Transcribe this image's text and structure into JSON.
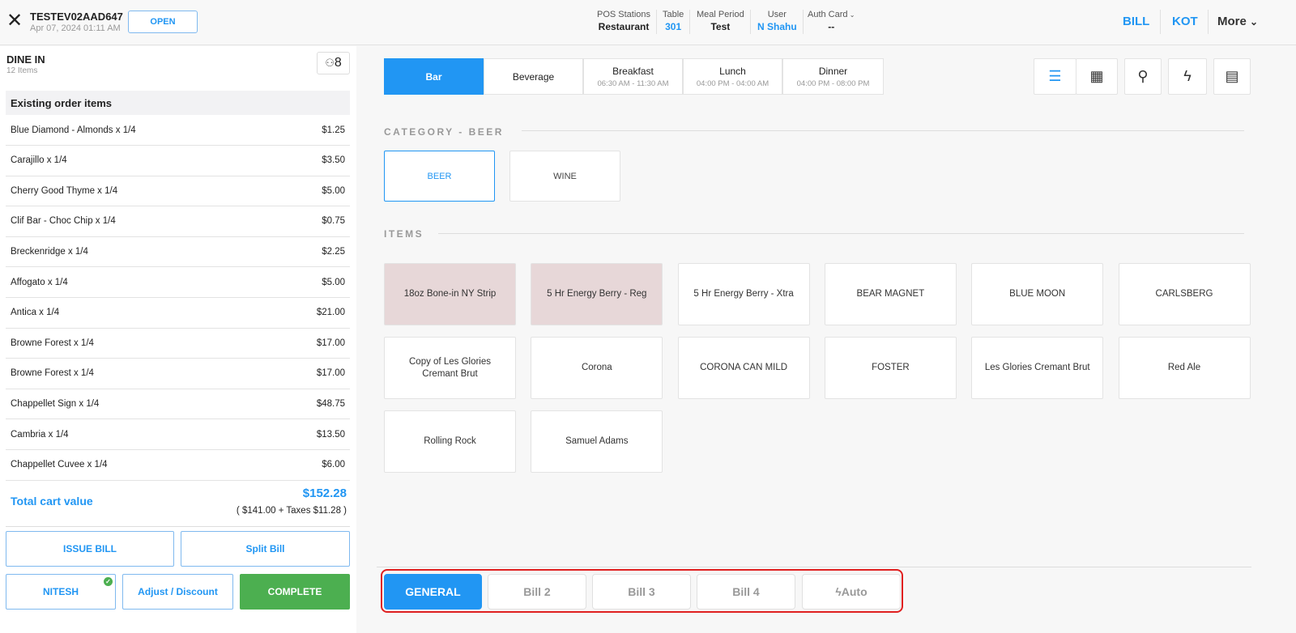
{
  "header": {
    "order_id": "TESTEV02AAD647",
    "date": "Apr 07, 2024 01:11 AM",
    "status": "OPEN",
    "meta": [
      {
        "label": "POS Stations",
        "value": "Restaurant"
      },
      {
        "label": "Table",
        "value": "301"
      },
      {
        "label": "Meal Period",
        "value": "Test"
      },
      {
        "label": "User",
        "value": "N Shahu"
      },
      {
        "label": "Auth Card",
        "value": "--"
      }
    ],
    "bill": "BILL",
    "kot": "KOT",
    "more": "More"
  },
  "order": {
    "type": "DINE IN",
    "count": "12 Items",
    "guests": "8",
    "section": "Existing order items",
    "items": [
      {
        "name": "Blue Diamond - Almonds x 1/4",
        "price": "$1.25"
      },
      {
        "name": "Carajillo x 1/4",
        "price": "$3.50"
      },
      {
        "name": "Cherry Good Thyme x 1/4",
        "price": "$5.00"
      },
      {
        "name": "Clif Bar - Choc Chip x 1/4",
        "price": "$0.75"
      },
      {
        "name": "Breckenridge x 1/4",
        "price": "$2.25"
      },
      {
        "name": "Affogato x 1/4",
        "price": "$5.00"
      },
      {
        "name": "Antica x 1/4",
        "price": "$21.00"
      },
      {
        "name": "Browne Forest x 1/4",
        "price": "$17.00"
      },
      {
        "name": "Browne Forest x 1/4",
        "price": "$17.00"
      },
      {
        "name": "Chappellet Sign x 1/4",
        "price": "$48.75"
      },
      {
        "name": "Cambria x 1/4",
        "price": "$13.50"
      },
      {
        "name": "Chappellet Cuvee x 1/4",
        "price": "$6.00"
      }
    ],
    "total_label": "Total cart value",
    "total": "$152.28",
    "breakdown": "( $141.00 + Taxes $11.28 )",
    "buttons": {
      "issue": "ISSUE BILL",
      "split": "Split Bill",
      "nitesh": "NITESH",
      "adjust": "Adjust / Discount",
      "complete": "COMPLETE"
    }
  },
  "menus": [
    {
      "name": "Bar",
      "time": ""
    },
    {
      "name": "Beverage",
      "time": ""
    },
    {
      "name": "Breakfast",
      "time": "06:30 AM -  11:30 AM"
    },
    {
      "name": "Lunch",
      "time": "04:00 PM -  04:00 AM"
    },
    {
      "name": "Dinner",
      "time": "04:00 PM -  08:00 PM"
    }
  ],
  "category_label": "CATEGORY  - BEER",
  "categories": [
    "BEER",
    "WINE"
  ],
  "items_label": "ITEMS",
  "items": [
    "18oz Bone-in NY Strip",
    "5 Hr Energy Berry - Reg",
    "5 Hr Energy Berry - Xtra",
    "BEAR MAGNET",
    "BLUE MOON",
    "CARLSBERG",
    "Copy of Les Glories Cremant Brut",
    "Corona",
    "CORONA CAN MILD",
    "FOSTER",
    "Les Glories Cremant Brut",
    "Red Ale",
    "Rolling Rock",
    "Samuel Adams"
  ],
  "bills": [
    "GENERAL",
    "Bill 2",
    "Bill 3",
    "Bill 4",
    "Auto"
  ],
  "colors": {
    "accent": "#2196f3",
    "complete": "#4caf50",
    "highlight_item": "#e7d7d8",
    "annotation": "#e02020"
  }
}
